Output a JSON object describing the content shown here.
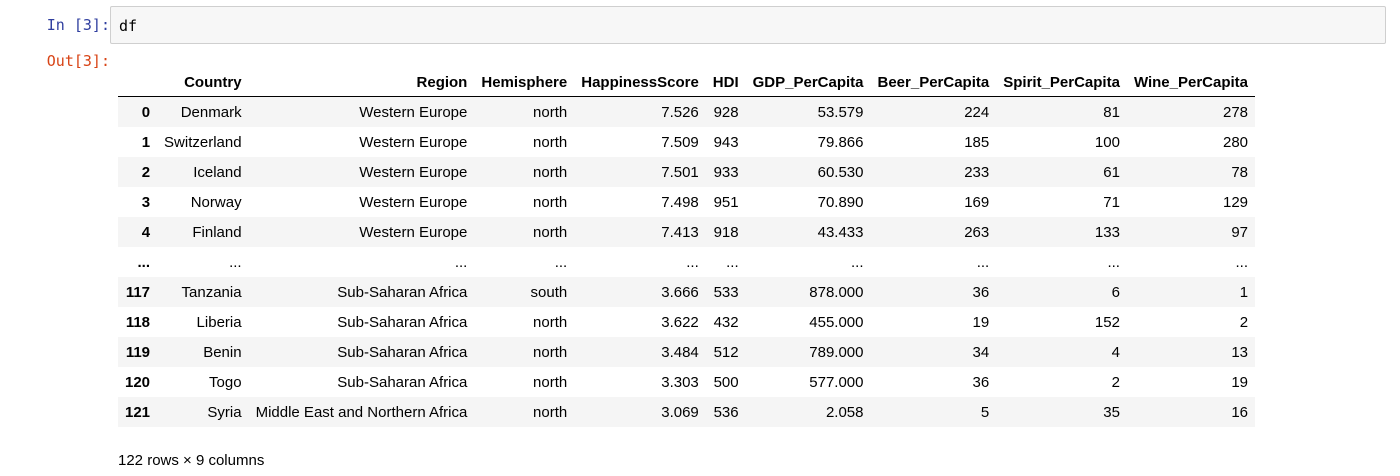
{
  "cell": {
    "in_prompt": "In [3]:",
    "out_prompt": "Out[3]:",
    "code": "df"
  },
  "dataframe": {
    "columns": [
      "",
      "Country",
      "Region",
      "Hemisphere",
      "HappinessScore",
      "HDI",
      "GDP_PerCapita",
      "Beer_PerCapita",
      "Spirit_PerCapita",
      "Wine_PerCapita"
    ],
    "rows": [
      [
        "0",
        "Denmark",
        "Western Europe",
        "north",
        "7.526",
        "928",
        "53.579",
        "224",
        "81",
        "278"
      ],
      [
        "1",
        "Switzerland",
        "Western Europe",
        "north",
        "7.509",
        "943",
        "79.866",
        "185",
        "100",
        "280"
      ],
      [
        "2",
        "Iceland",
        "Western Europe",
        "north",
        "7.501",
        "933",
        "60.530",
        "233",
        "61",
        "78"
      ],
      [
        "3",
        "Norway",
        "Western Europe",
        "north",
        "7.498",
        "951",
        "70.890",
        "169",
        "71",
        "129"
      ],
      [
        "4",
        "Finland",
        "Western Europe",
        "north",
        "7.413",
        "918",
        "43.433",
        "263",
        "133",
        "97"
      ],
      [
        "...",
        "...",
        "...",
        "...",
        "...",
        "...",
        "...",
        "...",
        "...",
        "..."
      ],
      [
        "117",
        "Tanzania",
        "Sub-Saharan Africa",
        "south",
        "3.666",
        "533",
        "878.000",
        "36",
        "6",
        "1"
      ],
      [
        "118",
        "Liberia",
        "Sub-Saharan Africa",
        "north",
        "3.622",
        "432",
        "455.000",
        "19",
        "152",
        "2"
      ],
      [
        "119",
        "Benin",
        "Sub-Saharan Africa",
        "north",
        "3.484",
        "512",
        "789.000",
        "34",
        "4",
        "13"
      ],
      [
        "120",
        "Togo",
        "Sub-Saharan Africa",
        "north",
        "3.303",
        "500",
        "577.000",
        "36",
        "2",
        "19"
      ],
      [
        "121",
        "Syria",
        "Middle East and Northern Africa",
        "north",
        "3.069",
        "536",
        "2.058",
        "5",
        "35",
        "16"
      ]
    ],
    "shape_text": "122 rows × 9 columns"
  },
  "colors": {
    "in_prompt": "#303f9f",
    "out_prompt": "#d84315",
    "input_bg": "#f7f7f7",
    "row_stripe": "#f5f5f5"
  }
}
